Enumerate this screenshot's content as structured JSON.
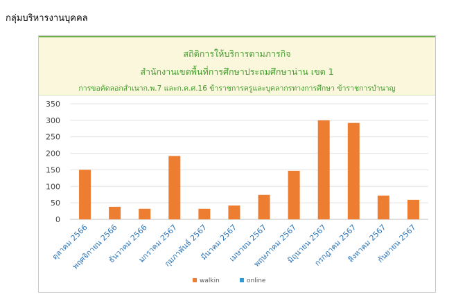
{
  "page": {
    "heading": "กลุ่มบริหารงานบุคคล"
  },
  "chart_data": {
    "type": "bar",
    "title_lines": [
      "สถิติการให้บริการตามภารกิจ",
      "สำนักงานเขตพื้นที่การศึกษาประถมศึกษาน่าน เขต 1",
      "การขอคัดลอกสำเนาก.พ.7 และก.ค.ศ.16 ข้าราชการครูและบุคลากรทางการศึกษา ข้าราชการบำนาญ"
    ],
    "categories": [
      "ตุลาคม 2566",
      "พฤศจิกายน 2566",
      "ธันวาคม 2566",
      "มกราคม 2567",
      "กุมภาพันธ์ 2567",
      "มีนาคม 2567",
      "เมษายน 2567",
      "พฤษภาคม 2567",
      "มิถุนายน 2567",
      "กรกฎาคม 2567",
      "สิงหาคม 2567",
      "กันยายน 2567"
    ],
    "series": [
      {
        "name": "walkin",
        "color": "#ed7d31",
        "values": [
          150,
          38,
          32,
          192,
          32,
          42,
          74,
          147,
          300,
          292,
          72,
          59
        ]
      },
      {
        "name": "online",
        "color": "#2e9bd6",
        "values": [
          0,
          0,
          0,
          0,
          0,
          0,
          0,
          0,
          0,
          0,
          0,
          0
        ]
      }
    ],
    "yticks": [
      "0",
      "50",
      "100",
      "150",
      "200",
      "250",
      "300",
      "350"
    ],
    "ylim": [
      0,
      350
    ],
    "grid": true,
    "legend_position": "bottom",
    "colors": {
      "title": "#3f9b28",
      "title_bg": "#fbf7dd",
      "tick_label": "#2e75b6"
    }
  }
}
